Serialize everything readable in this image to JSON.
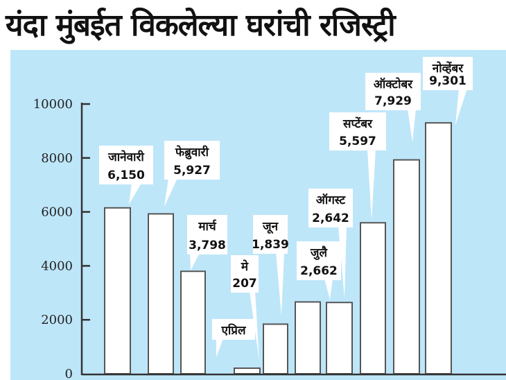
{
  "chart_data": {
    "type": "bar",
    "title": "यंदा मुंबईत विकलेल्या घरांची रजिस्ट्री",
    "xlabel": "",
    "ylabel": "",
    "ylim": [
      0,
      10000
    ],
    "yticks": [
      "0",
      "2000",
      "4000",
      "6000",
      "8000",
      "10000"
    ],
    "categories": [
      "जानेवारी",
      "फेब्रुवारी",
      "मार्च",
      "एप्रिल",
      "मे",
      "जून",
      "जुलै",
      "ऑगस्ट",
      "सप्टेंबर",
      "ऑक्टोबर",
      "नोव्हेंबर"
    ],
    "values": [
      6150,
      5927,
      3798,
      0,
      207,
      1839,
      2662,
      2642,
      5597,
      7929,
      9301
    ],
    "value_labels": [
      "6,150",
      "5,927",
      "3,798",
      "",
      "207",
      "1,839",
      "2,662",
      "2,642",
      "5,597",
      "7,929",
      "9,301"
    ],
    "grid": false,
    "colors": {
      "background": "#bee6f9",
      "bar": "#ffffff",
      "bar_edge": "#555555"
    }
  }
}
